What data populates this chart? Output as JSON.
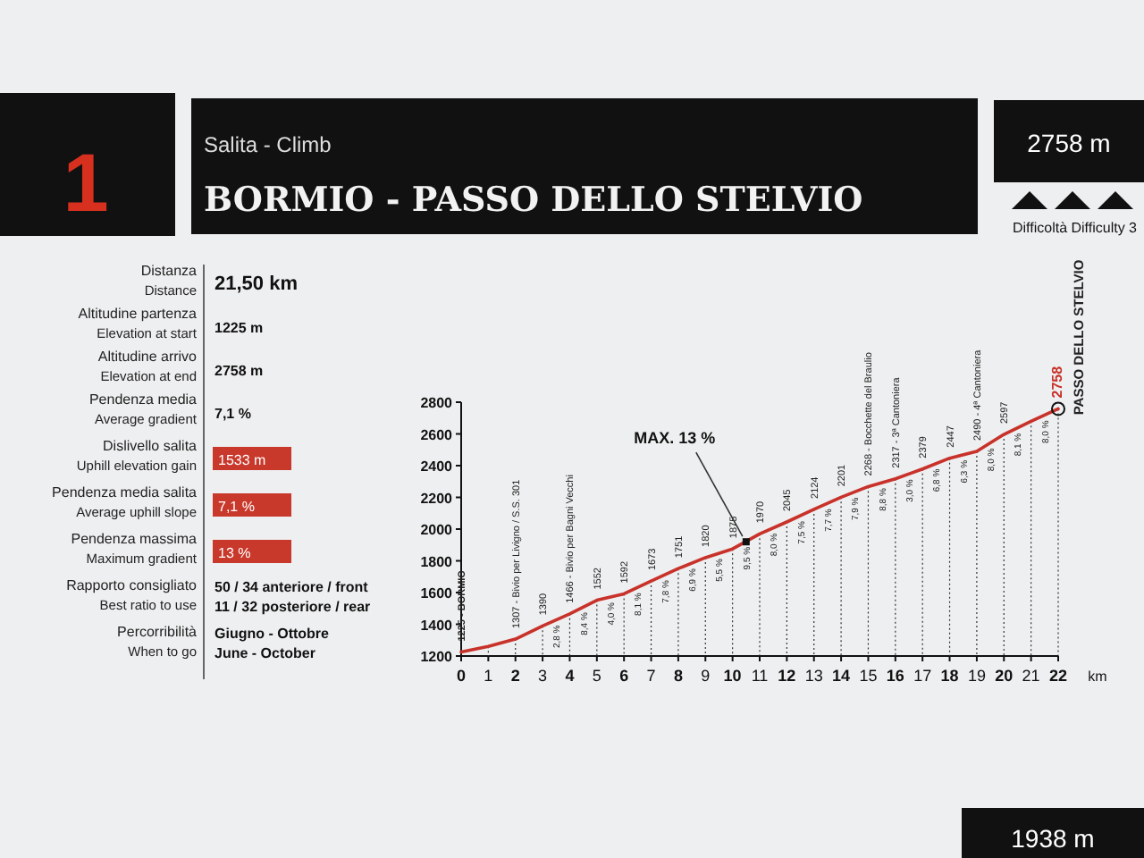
{
  "chart_data": {
    "type": "line",
    "title": "BORMIO - PASSO DELLO STELVIO",
    "subtitle": "Salita - Climb",
    "xlabel": "km",
    "x": [
      0,
      1,
      2,
      3,
      4,
      5,
      6,
      7,
      8,
      9,
      10,
      11,
      12,
      13,
      14,
      15,
      16,
      17,
      18,
      19,
      20,
      21,
      22
    ],
    "series": [
      {
        "color": "#c8322a",
        "values": [
          1225,
          1260,
          1307,
          1390,
          1466,
          1552,
          1592,
          1673,
          1751,
          1820,
          1875,
          1970,
          2045,
          2124,
          2201,
          2268,
          2317,
          2379,
          2447,
          2490,
          2597,
          2680,
          2758
        ],
        "value_labels": [
          "1225 - BORMIO",
          null,
          "1307 - Bivio per Livigno / S.S. 301",
          "1390",
          "1466 - Bivio per Bagni Vecchi",
          "1552",
          "1592",
          "1673",
          "1751",
          "1820",
          "1875",
          "1970",
          "2045",
          "2124",
          "2201",
          "2268 - Bocchette del Braulio",
          "2317 - 3ª Cantoniera",
          "2379",
          "2447",
          "2490 - 4ª Cantoniera",
          "2597",
          null,
          "2758"
        ]
      }
    ],
    "xlim": [
      0,
      22
    ],
    "xticks": [
      0,
      1,
      2,
      3,
      4,
      5,
      6,
      7,
      8,
      9,
      10,
      11,
      12,
      13,
      14,
      15,
      16,
      17,
      18,
      19,
      20,
      21,
      22
    ],
    "ylim": [
      1200,
      2800
    ],
    "yticks": [
      1200,
      1400,
      1600,
      1800,
      2000,
      2200,
      2400,
      2600,
      2800
    ],
    "grid": "x",
    "marker": "none",
    "line_style": "solid",
    "annotations": [
      "1",
      "2758 m",
      "Difficoltà Difficulty 3",
      "Distanza\nDistance",
      "21,50 km",
      "Altitudine partenza\nElevation at start",
      "1225 m",
      "Altitudine arrivo\nElevation at end",
      "2758 m",
      "Pendenza media\nAverage gradient",
      "7,1 %",
      "Dislivello salita\nUphill elevation gain",
      "1533 m",
      "Pendenza media salita\nAverage uphill slope",
      "7,1 %",
      "Pendenza massima\nMaximum gradient",
      "13 %",
      "Rapporto consigliato\nBest ratio to use",
      "50 / 34 anteriore / front\n11 / 32 posteriore / rear",
      "Percorribilità\nWhen to go",
      "Giugno - Ottobre\nJune - October",
      "1938 m",
      {
        "text": "MAX. 13 %",
        "x": 10.5,
        "y": 1920
      },
      {
        "text": "PASSO DELLO STELVIO",
        "x": 22,
        "y": 2758
      },
      {
        "text": "2,8 %",
        "x": 3.5,
        "y": 1428
      },
      {
        "text": "8,4 %",
        "x": 4.5,
        "y": 1509
      },
      {
        "text": "4,0 %",
        "x": 5.5,
        "y": 1572
      },
      {
        "text": "8,1 %",
        "x": 6.5,
        "y": 1632
      },
      {
        "text": "7,8 %",
        "x": 7.5,
        "y": 1712
      },
      {
        "text": "6,9 %",
        "x": 8.5,
        "y": 1785
      },
      {
        "text": "5,5 %",
        "x": 9.5,
        "y": 1847
      },
      {
        "text": "9,5 %",
        "x": 10.5,
        "y": 1922
      },
      {
        "text": "8,0 %",
        "x": 11.5,
        "y": 2007
      },
      {
        "text": "7,5 %",
        "x": 12.5,
        "y": 2084
      },
      {
        "text": "7,7 %",
        "x": 13.5,
        "y": 2162
      },
      {
        "text": "7,9 %",
        "x": 14.5,
        "y": 2234
      },
      {
        "text": "8,8 %",
        "x": 15.5,
        "y": 2292
      },
      {
        "text": "3,0 %",
        "x": 16.5,
        "y": 2348
      },
      {
        "text": "6,8 %",
        "x": 17.5,
        "y": 2413
      },
      {
        "text": "6,3 %",
        "x": 18.5,
        "y": 2468
      },
      {
        "text": "8,0 %",
        "x": 19.5,
        "y": 2543
      },
      {
        "text": "8,1 %",
        "x": 20.5,
        "y": 2638
      },
      {
        "text": "8,0 %",
        "x": 21.5,
        "y": 2719
      }
    ]
  }
}
